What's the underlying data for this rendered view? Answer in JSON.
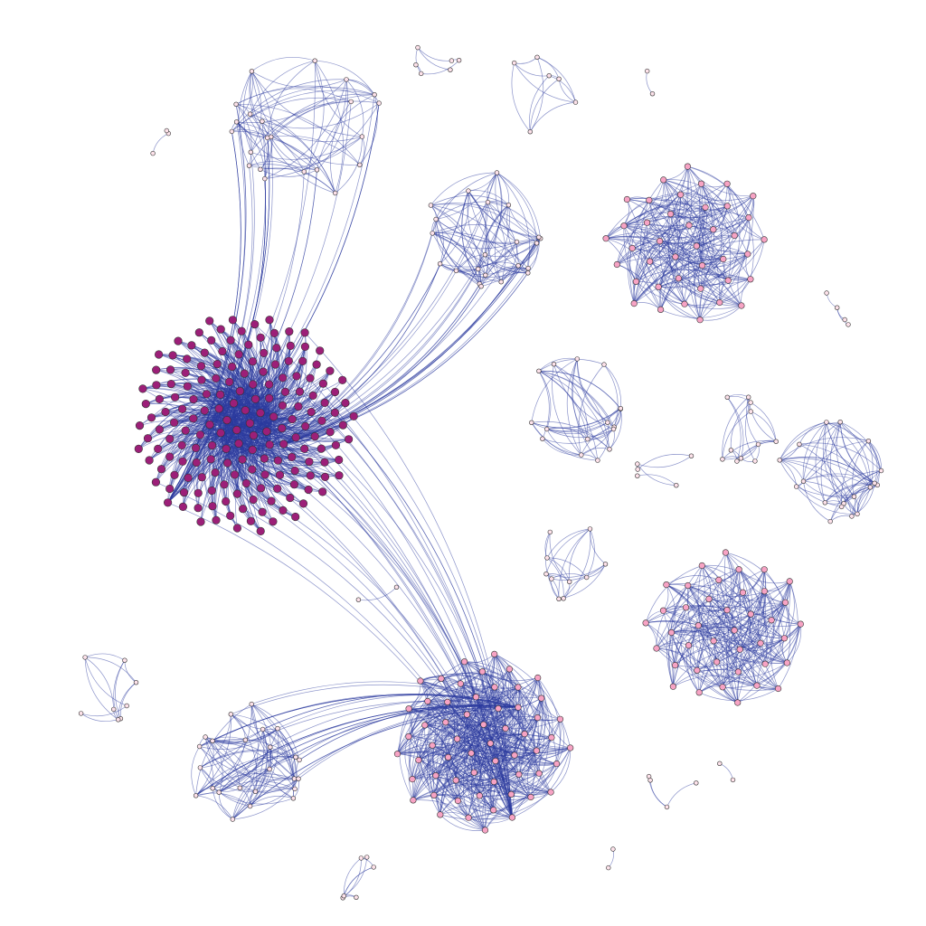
{
  "figure": {
    "kind": "network-graph",
    "background": "#ffffff",
    "edge_color": "#2b3a9e",
    "node_outline": "#333333",
    "node_palette": {
      "hub": "#9c1f78",
      "major": "#f7a3c4",
      "minor": "#fde2ea"
    },
    "title": "",
    "labels": []
  },
  "clusters": [
    {
      "id": "c-hub",
      "role": "hub",
      "nodes": 180,
      "density": "very-high",
      "bridges_to": [
        "c-top-left",
        "c-top-mid",
        "c-bottom-center"
      ]
    },
    {
      "id": "c-top-left",
      "role": "minor",
      "nodes": 22,
      "density": "high",
      "bridges_to": [
        "c-hub"
      ]
    },
    {
      "id": "c-top-mid",
      "role": "minor",
      "nodes": 22,
      "density": "high",
      "bridges_to": [
        "c-hub"
      ]
    },
    {
      "id": "c-right-top",
      "role": "major",
      "nodes": 40,
      "density": "very-high",
      "bridges_to": []
    },
    {
      "id": "c-right-bottom",
      "role": "major",
      "nodes": 40,
      "density": "very-high",
      "bridges_to": []
    },
    {
      "id": "c-bottom-center",
      "role": "major",
      "nodes": 58,
      "density": "very-high",
      "bridges_to": [
        "c-hub",
        "c-bottom-left"
      ]
    },
    {
      "id": "c-bottom-left",
      "role": "minor",
      "nodes": 24,
      "density": "high",
      "bridges_to": [
        "c-bottom-center"
      ]
    },
    {
      "id": "c-mid-1",
      "role": "minor",
      "nodes": 16,
      "density": "medium",
      "bridges_to": []
    },
    {
      "id": "c-mid-2",
      "role": "minor",
      "nodes": 11,
      "density": "medium",
      "bridges_to": []
    },
    {
      "id": "c-mid-3",
      "role": "minor",
      "nodes": 10,
      "density": "medium",
      "bridges_to": []
    },
    {
      "id": "c-right-strip",
      "role": "minor",
      "nodes": 18,
      "density": "medium",
      "bridges_to": []
    },
    {
      "id": "c-small-1",
      "role": "minor",
      "nodes": 8,
      "density": "low",
      "bridges_to": []
    },
    {
      "id": "c-small-2",
      "role": "minor",
      "nodes": 6,
      "density": "low",
      "bridges_to": []
    },
    {
      "id": "c-small-3",
      "role": "minor",
      "nodes": 5,
      "density": "low",
      "bridges_to": []
    },
    {
      "id": "c-small-4",
      "role": "minor",
      "nodes": 4,
      "density": "low",
      "bridges_to": []
    },
    {
      "id": "c-small-5",
      "role": "minor",
      "nodes": 6,
      "density": "low",
      "bridges_to": []
    },
    {
      "id": "c-small-6",
      "role": "minor",
      "nodes": 6,
      "density": "low",
      "bridges_to": []
    },
    {
      "id": "c-small-7",
      "role": "minor",
      "nodes": 4,
      "density": "low",
      "bridges_to": []
    },
    {
      "id": "c-pair-1",
      "role": "minor",
      "nodes": 2,
      "density": "low",
      "bridges_to": []
    },
    {
      "id": "c-pair-2",
      "role": "minor",
      "nodes": 3,
      "density": "low",
      "bridges_to": []
    },
    {
      "id": "c-pair-3",
      "role": "minor",
      "nodes": 2,
      "density": "low",
      "bridges_to": []
    },
    {
      "id": "c-pair-4",
      "role": "minor",
      "nodes": 2,
      "density": "low",
      "bridges_to": []
    },
    {
      "id": "c-pair-5",
      "role": "minor",
      "nodes": 2,
      "density": "low",
      "bridges_to": []
    }
  ]
}
